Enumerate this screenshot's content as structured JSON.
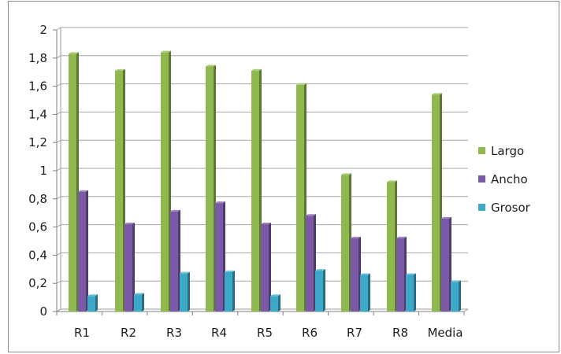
{
  "chart_data": {
    "type": "bar",
    "title": "",
    "xlabel": "",
    "ylabel": "",
    "categories": [
      "R1",
      "R2",
      "R3",
      "R4",
      "R5",
      "R6",
      "R7",
      "R8",
      "Media"
    ],
    "series": [
      {
        "name": "Largo",
        "color": "#8fb84e",
        "values": [
          1.83,
          1.71,
          1.84,
          1.74,
          1.71,
          1.61,
          0.97,
          0.92,
          1.54
        ]
      },
      {
        "name": "Ancho",
        "color": "#7a5aa6",
        "values": [
          0.85,
          0.62,
          0.71,
          0.77,
          0.62,
          0.68,
          0.52,
          0.52,
          0.66
        ]
      },
      {
        "name": "Grosor",
        "color": "#3ca9c9",
        "values": [
          0.11,
          0.12,
          0.27,
          0.28,
          0.11,
          0.29,
          0.26,
          0.26,
          0.21
        ]
      }
    ],
    "ylim": [
      0,
      2
    ],
    "yticks": [
      "0",
      "0,2",
      "0,4",
      "0,6",
      "0,8",
      "1",
      "1,2",
      "1,4",
      "1,6",
      "1,8",
      "2"
    ],
    "grid": true,
    "legend": "right"
  }
}
